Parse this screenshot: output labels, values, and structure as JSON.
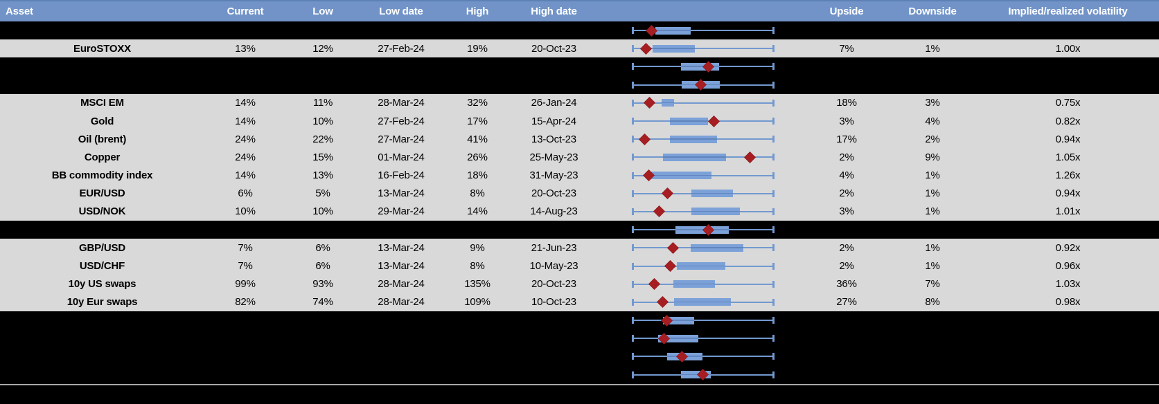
{
  "columns": [
    {
      "key": "asset",
      "label": "Asset"
    },
    {
      "key": "current",
      "label": "Current"
    },
    {
      "key": "low",
      "label": "Low"
    },
    {
      "key": "low_date",
      "label": "Low date"
    },
    {
      "key": "high",
      "label": "High"
    },
    {
      "key": "high_date",
      "label": "High date"
    },
    {
      "key": "chart",
      "label": ""
    },
    {
      "key": "upside",
      "label": "Upside"
    },
    {
      "key": "downside",
      "label": "Downside"
    },
    {
      "key": "implied",
      "label": "Implied/realized volatility"
    }
  ],
  "rows": [
    {
      "type": "redacted",
      "box": {
        "q1": 0.16,
        "q3": 0.41,
        "marker": 0.135
      }
    },
    {
      "type": "data",
      "asset": "EuroSTOXX",
      "current": "13%",
      "low": "12%",
      "low_date": "27-Feb-24",
      "high": "19%",
      "high_date": "20-Oct-23",
      "upside": "7%",
      "downside": "1%",
      "implied": "1.00x",
      "box": {
        "q1": 0.14,
        "q3": 0.44,
        "marker": 0.095
      }
    },
    {
      "type": "redacted",
      "box": {
        "q1": 0.345,
        "q3": 0.615,
        "marker": 0.535
      }
    },
    {
      "type": "redacted",
      "box": {
        "q1": 0.35,
        "q3": 0.62,
        "marker": 0.485
      }
    },
    {
      "type": "data",
      "asset": "MSCI EM",
      "current": "14%",
      "low": "11%",
      "low_date": "28-Mar-24",
      "high": "32%",
      "high_date": "26-Jan-24",
      "upside": "18%",
      "downside": "3%",
      "implied": "0.75x",
      "box": {
        "q1": 0.205,
        "q3": 0.295,
        "marker": 0.12
      }
    },
    {
      "type": "data",
      "asset": "Gold",
      "current": "14%",
      "low": "10%",
      "low_date": "27-Feb-24",
      "high": "17%",
      "high_date": "15-Apr-24",
      "upside": "3%",
      "downside": "4%",
      "implied": "0.82x",
      "box": {
        "q1": 0.265,
        "q3": 0.535,
        "marker": 0.575
      }
    },
    {
      "type": "data",
      "asset": "Oil (brent)",
      "current": "24%",
      "low": "22%",
      "low_date": "27-Mar-24",
      "high": "41%",
      "high_date": "13-Oct-23",
      "upside": "17%",
      "downside": "2%",
      "implied": "0.94x",
      "box": {
        "q1": 0.265,
        "q3": 0.6,
        "marker": 0.085
      }
    },
    {
      "type": "data",
      "asset": "Copper",
      "current": "24%",
      "low": "15%",
      "low_date": "01-Mar-24",
      "high": "26%",
      "high_date": "25-May-23",
      "upside": "2%",
      "downside": "9%",
      "implied": "1.05x",
      "box": {
        "q1": 0.215,
        "q3": 0.66,
        "marker": 0.83
      }
    },
    {
      "type": "data",
      "asset": "BB commodity index",
      "current": "14%",
      "low": "13%",
      "low_date": "16-Feb-24",
      "high": "18%",
      "high_date": "31-May-23",
      "upside": "4%",
      "downside": "1%",
      "implied": "1.26x",
      "box": {
        "q1": 0.13,
        "q3": 0.56,
        "marker": 0.115
      }
    },
    {
      "type": "data",
      "asset": "EUR/USD",
      "current": "6%",
      "low": "5%",
      "low_date": "13-Mar-24",
      "high": "8%",
      "high_date": "20-Oct-23",
      "upside": "2%",
      "downside": "1%",
      "implied": "0.94x",
      "box": {
        "q1": 0.415,
        "q3": 0.71,
        "marker": 0.245
      }
    },
    {
      "type": "data",
      "asset": "USD/NOK",
      "current": "10%",
      "low": "10%",
      "low_date": "29-Mar-24",
      "high": "14%",
      "high_date": "14-Aug-23",
      "upside": "3%",
      "downside": "1%",
      "implied": "1.01x",
      "box": {
        "q1": 0.415,
        "q3": 0.76,
        "marker": 0.19
      }
    },
    {
      "type": "redacted",
      "box": {
        "q1": 0.305,
        "q3": 0.68,
        "marker": 0.535
      }
    },
    {
      "type": "data",
      "asset": "GBP/USD",
      "current": "7%",
      "low": "6%",
      "low_date": "13-Mar-24",
      "high": "9%",
      "high_date": "21-Jun-23",
      "upside": "2%",
      "downside": "1%",
      "implied": "0.92x",
      "box": {
        "q1": 0.41,
        "q3": 0.785,
        "marker": 0.285
      }
    },
    {
      "type": "data",
      "asset": "USD/CHF",
      "current": "7%",
      "low": "6%",
      "low_date": "13-Mar-24",
      "high": "8%",
      "high_date": "10-May-23",
      "upside": "2%",
      "downside": "1%",
      "implied": "0.96x",
      "box": {
        "q1": 0.315,
        "q3": 0.655,
        "marker": 0.265
      }
    },
    {
      "type": "data",
      "asset": "10y US swaps",
      "current": "99%",
      "low": "93%",
      "low_date": "28-Mar-24",
      "high": "135%",
      "high_date": "20-Oct-23",
      "upside": "36%",
      "downside": "7%",
      "implied": "1.03x",
      "box": {
        "q1": 0.29,
        "q3": 0.585,
        "marker": 0.155
      }
    },
    {
      "type": "data",
      "asset": "10y Eur swaps",
      "current": "82%",
      "low": "74%",
      "low_date": "28-Mar-24",
      "high": "109%",
      "high_date": "10-Oct-23",
      "upside": "27%",
      "downside": "8%",
      "implied": "0.98x",
      "box": {
        "q1": 0.295,
        "q3": 0.695,
        "marker": 0.215
      }
    },
    {
      "type": "redacted",
      "box": {
        "q1": 0.215,
        "q3": 0.435,
        "marker": 0.24
      }
    },
    {
      "type": "redacted",
      "box": {
        "q1": 0.18,
        "q3": 0.465,
        "marker": 0.225
      }
    },
    {
      "type": "redacted",
      "box": {
        "q1": 0.245,
        "q3": 0.495,
        "marker": 0.35
      }
    },
    {
      "type": "redacted",
      "box": {
        "q1": 0.345,
        "q3": 0.555,
        "marker": 0.495
      }
    }
  ],
  "colors": {
    "header_blue": "#7193C7",
    "row_gray": "#D9D9D9",
    "redacted_black": "#000000",
    "box_blue": "#7BA1D8",
    "whisker_blue": "#7299CF",
    "marker_red": "#A61E22",
    "separator_gray": "#A8A8A8"
  }
}
